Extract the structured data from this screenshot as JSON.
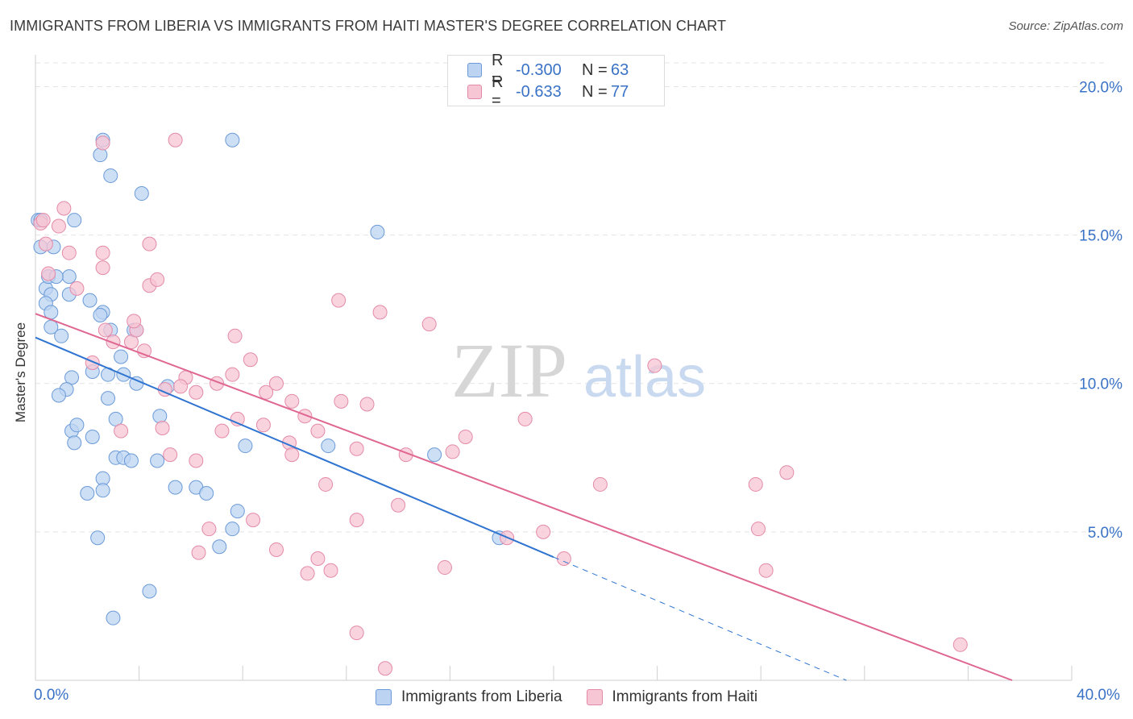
{
  "title": "IMMIGRANTS FROM LIBERIA VS IMMIGRANTS FROM HAITI MASTER'S DEGREE CORRELATION CHART",
  "source": "Source: ZipAtlas.com",
  "watermark": {
    "zip": "ZIP",
    "atlas": "atlas"
  },
  "colors": {
    "liberia_fill": "#bcd4f2",
    "liberia_stroke": "#6b9ad8",
    "liberia_line": "#2f74d0",
    "haiti_fill": "#f7c6d4",
    "haiti_stroke": "#e48aa8",
    "haiti_line": "#e06692",
    "axis_text": "#3a72c6"
  },
  "legend": {
    "liberia": {
      "r_label": "R =",
      "r_value": "-0.300",
      "n_label": "N =",
      "n_value": "63"
    },
    "haiti": {
      "r_label": "R =",
      "r_value": "-0.633",
      "n_label": "N =",
      "n_value": "77"
    }
  },
  "chart_data": {
    "type": "scatter",
    "title": "IMMIGRANTS FROM LIBERIA VS IMMIGRANTS FROM HAITI MASTER'S DEGREE CORRELATION CHART",
    "xlabel": "",
    "ylabel": "Master's Degree",
    "xlim": [
      0,
      40
    ],
    "ylim": [
      0,
      20.8
    ],
    "x_tick_labels": [
      "0.0%",
      "40.0%"
    ],
    "y_ticks": [
      5,
      10,
      15,
      20
    ],
    "y_tick_labels": [
      "5.0%",
      "10.0%",
      "15.0%",
      "20.0%"
    ],
    "grid": true,
    "legend_position": "top-center",
    "series": [
      {
        "name": "Immigrants from Liberia",
        "points": [
          [
            0.1,
            15.5
          ],
          [
            0.2,
            14.6
          ],
          [
            0.4,
            13.2
          ],
          [
            0.5,
            13.6
          ],
          [
            0.6,
            13.0
          ],
          [
            0.7,
            14.6
          ],
          [
            1.3,
            13.6
          ],
          [
            2.6,
            18.2
          ],
          [
            2.5,
            17.7
          ],
          [
            2.9,
            17.0
          ],
          [
            4.1,
            16.4
          ],
          [
            7.6,
            18.2
          ],
          [
            1.5,
            15.5
          ],
          [
            0.4,
            12.7
          ],
          [
            0.6,
            12.4
          ],
          [
            0.6,
            11.9
          ],
          [
            1.0,
            11.6
          ],
          [
            1.3,
            13.0
          ],
          [
            2.1,
            12.8
          ],
          [
            2.6,
            12.4
          ],
          [
            2.5,
            12.3
          ],
          [
            2.9,
            11.8
          ],
          [
            3.3,
            10.9
          ],
          [
            3.8,
            11.8
          ],
          [
            1.4,
            10.2
          ],
          [
            1.2,
            9.8
          ],
          [
            0.9,
            9.6
          ],
          [
            2.2,
            10.4
          ],
          [
            3.4,
            10.3
          ],
          [
            3.9,
            10.0
          ],
          [
            2.8,
            10.3
          ],
          [
            5.1,
            9.9
          ],
          [
            2.8,
            9.5
          ],
          [
            1.4,
            8.4
          ],
          [
            1.6,
            8.6
          ],
          [
            3.1,
            8.8
          ],
          [
            4.8,
            8.9
          ],
          [
            1.5,
            8.0
          ],
          [
            2.2,
            8.2
          ],
          [
            3.1,
            7.5
          ],
          [
            3.4,
            7.5
          ],
          [
            3.7,
            7.4
          ],
          [
            4.7,
            7.4
          ],
          [
            8.1,
            7.9
          ],
          [
            11.3,
            7.9
          ],
          [
            15.4,
            7.6
          ],
          [
            2.6,
            6.8
          ],
          [
            2.6,
            6.4
          ],
          [
            2.0,
            6.3
          ],
          [
            5.4,
            6.5
          ],
          [
            6.2,
            6.5
          ],
          [
            6.6,
            6.3
          ],
          [
            7.8,
            5.7
          ],
          [
            7.6,
            5.1
          ],
          [
            2.4,
            4.8
          ],
          [
            7.1,
            4.5
          ],
          [
            4.4,
            3.0
          ],
          [
            3.0,
            2.1
          ],
          [
            13.2,
            15.1
          ],
          [
            0.2,
            15.5
          ],
          [
            3.9,
            11.8
          ],
          [
            0.8,
            13.6
          ],
          [
            17.9,
            4.8
          ]
        ]
      },
      {
        "name": "Immigrants from Haiti",
        "points": [
          [
            0.2,
            15.4
          ],
          [
            0.3,
            15.5
          ],
          [
            1.1,
            15.9
          ],
          [
            0.9,
            15.3
          ],
          [
            0.4,
            14.7
          ],
          [
            1.3,
            14.4
          ],
          [
            2.6,
            18.1
          ],
          [
            5.4,
            18.2
          ],
          [
            2.6,
            14.4
          ],
          [
            4.4,
            14.7
          ],
          [
            0.5,
            13.7
          ],
          [
            1.6,
            13.2
          ],
          [
            2.6,
            13.9
          ],
          [
            4.4,
            13.3
          ],
          [
            4.7,
            13.5
          ],
          [
            2.7,
            11.8
          ],
          [
            3.0,
            11.4
          ],
          [
            3.7,
            11.4
          ],
          [
            3.9,
            11.8
          ],
          [
            3.8,
            12.1
          ],
          [
            4.2,
            11.1
          ],
          [
            2.2,
            10.7
          ],
          [
            7.7,
            11.6
          ],
          [
            8.3,
            10.8
          ],
          [
            7.0,
            10.0
          ],
          [
            7.6,
            10.3
          ],
          [
            8.9,
            9.7
          ],
          [
            9.3,
            10.0
          ],
          [
            6.2,
            9.7
          ],
          [
            5.8,
            10.2
          ],
          [
            5.0,
            9.8
          ],
          [
            5.6,
            9.9
          ],
          [
            9.9,
            9.4
          ],
          [
            11.8,
            9.4
          ],
          [
            12.8,
            9.3
          ],
          [
            10.4,
            8.9
          ],
          [
            7.8,
            8.8
          ],
          [
            8.8,
            8.6
          ],
          [
            4.9,
            8.5
          ],
          [
            7.2,
            8.4
          ],
          [
            3.3,
            8.4
          ],
          [
            10.9,
            8.4
          ],
          [
            9.8,
            8.0
          ],
          [
            5.2,
            7.6
          ],
          [
            6.2,
            7.4
          ],
          [
            9.9,
            7.6
          ],
          [
            12.4,
            7.8
          ],
          [
            14.3,
            7.6
          ],
          [
            16.1,
            7.7
          ],
          [
            16.6,
            8.2
          ],
          [
            18.9,
            8.8
          ],
          [
            11.2,
            6.6
          ],
          [
            11.7,
            12.8
          ],
          [
            13.3,
            12.4
          ],
          [
            15.2,
            12.0
          ],
          [
            23.9,
            10.6
          ],
          [
            21.8,
            6.6
          ],
          [
            27.8,
            6.6
          ],
          [
            29.0,
            7.0
          ],
          [
            14.0,
            5.9
          ],
          [
            12.4,
            5.4
          ],
          [
            8.4,
            5.4
          ],
          [
            6.7,
            5.1
          ],
          [
            19.6,
            5.0
          ],
          [
            27.9,
            5.1
          ],
          [
            6.3,
            4.3
          ],
          [
            9.3,
            4.4
          ],
          [
            10.9,
            4.1
          ],
          [
            10.5,
            3.6
          ],
          [
            11.4,
            3.7
          ],
          [
            15.8,
            3.8
          ],
          [
            20.4,
            4.1
          ],
          [
            28.2,
            3.7
          ],
          [
            12.4,
            1.6
          ],
          [
            13.5,
            0.4
          ],
          [
            35.7,
            1.2
          ],
          [
            18.2,
            4.8
          ]
        ]
      }
    ],
    "trend_lines": [
      {
        "series": "Immigrants from Liberia",
        "x_start": 0,
        "y_start": 11.55,
        "x_end": 20.0,
        "y_end": 4.15,
        "dashed_to_x": 31.3,
        "dashed_to_y": 0.0
      },
      {
        "series": "Immigrants from Haiti",
        "x_start": 0,
        "y_start": 12.35,
        "x_end": 37.7,
        "y_end": 0.0
      }
    ]
  }
}
